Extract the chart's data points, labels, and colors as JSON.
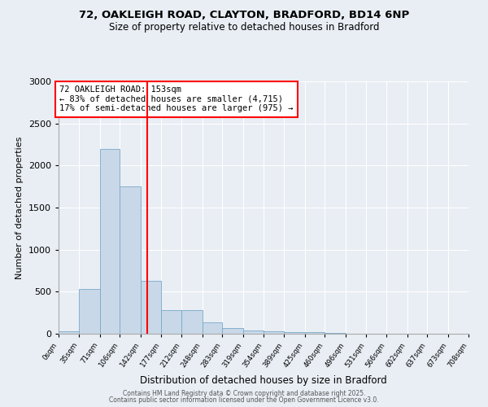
{
  "title": "72, OAKLEIGH ROAD, CLAYTON, BRADFORD, BD14 6NP",
  "subtitle": "Size of property relative to detached houses in Bradford",
  "xlabel": "Distribution of detached houses by size in Bradford",
  "ylabel": "Number of detached properties",
  "bar_color": "#c8d8e8",
  "bar_edge_color": "#7aa8c8",
  "background_color": "#e8eef4",
  "grid_color": "#ffffff",
  "property_line_x": 153,
  "annotation_text": "72 OAKLEIGH ROAD: 153sqm\n← 83% of detached houses are smaller (4,715)\n17% of semi-detached houses are larger (975) →",
  "bin_edges": [
    0,
    35,
    71,
    106,
    142,
    177,
    212,
    248,
    283,
    319,
    354,
    389,
    425,
    460,
    496,
    531,
    566,
    602,
    637,
    673,
    708
  ],
  "bin_values": [
    30,
    530,
    2200,
    1750,
    630,
    280,
    280,
    135,
    70,
    40,
    25,
    15,
    20,
    5,
    2,
    1,
    1,
    0,
    0,
    0
  ],
  "ylim": [
    0,
    3000
  ],
  "yticks": [
    0,
    500,
    1000,
    1500,
    2000,
    2500,
    3000
  ],
  "footer_text1": "Contains HM Land Registry data © Crown copyright and database right 2025.",
  "footer_text2": "Contains public sector information licensed under the Open Government Licence v3.0."
}
